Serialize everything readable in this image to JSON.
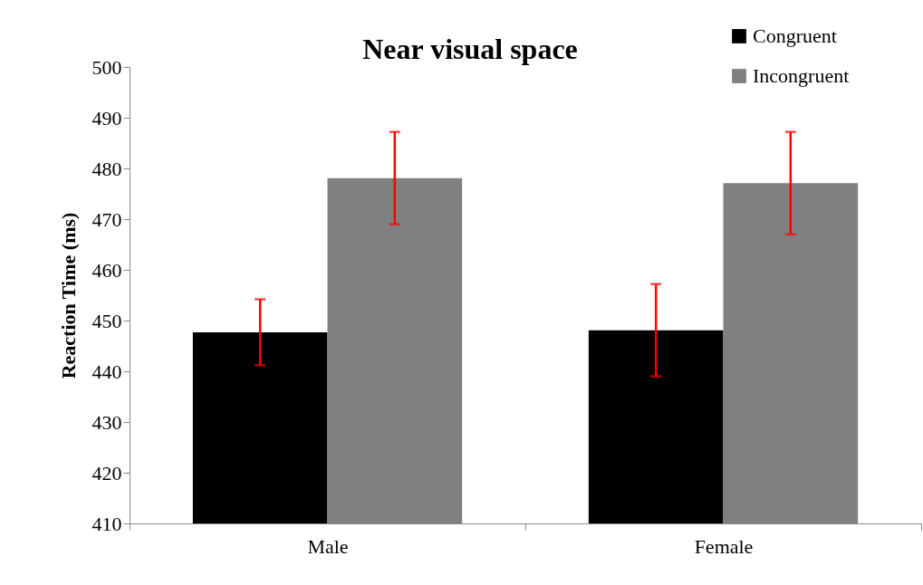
{
  "chart_data": {
    "type": "bar",
    "title": "Near visual space",
    "ylabel": "Reaction Time (ms)",
    "categories": [
      "Male",
      "Female"
    ],
    "series": [
      {
        "name": "Congruent",
        "color": "#000000",
        "values": [
          447.7,
          448.1
        ],
        "errors": [
          6.5,
          9.1
        ]
      },
      {
        "name": "Incongruent",
        "color": "#808080",
        "values": [
          478.1,
          477.1
        ],
        "errors": [
          9.1,
          10.1
        ]
      }
    ],
    "ylim": [
      410,
      500
    ],
    "yticks": [
      410,
      420,
      430,
      440,
      450,
      460,
      470,
      480,
      490,
      500
    ],
    "grid": false,
    "legend": "top right"
  }
}
